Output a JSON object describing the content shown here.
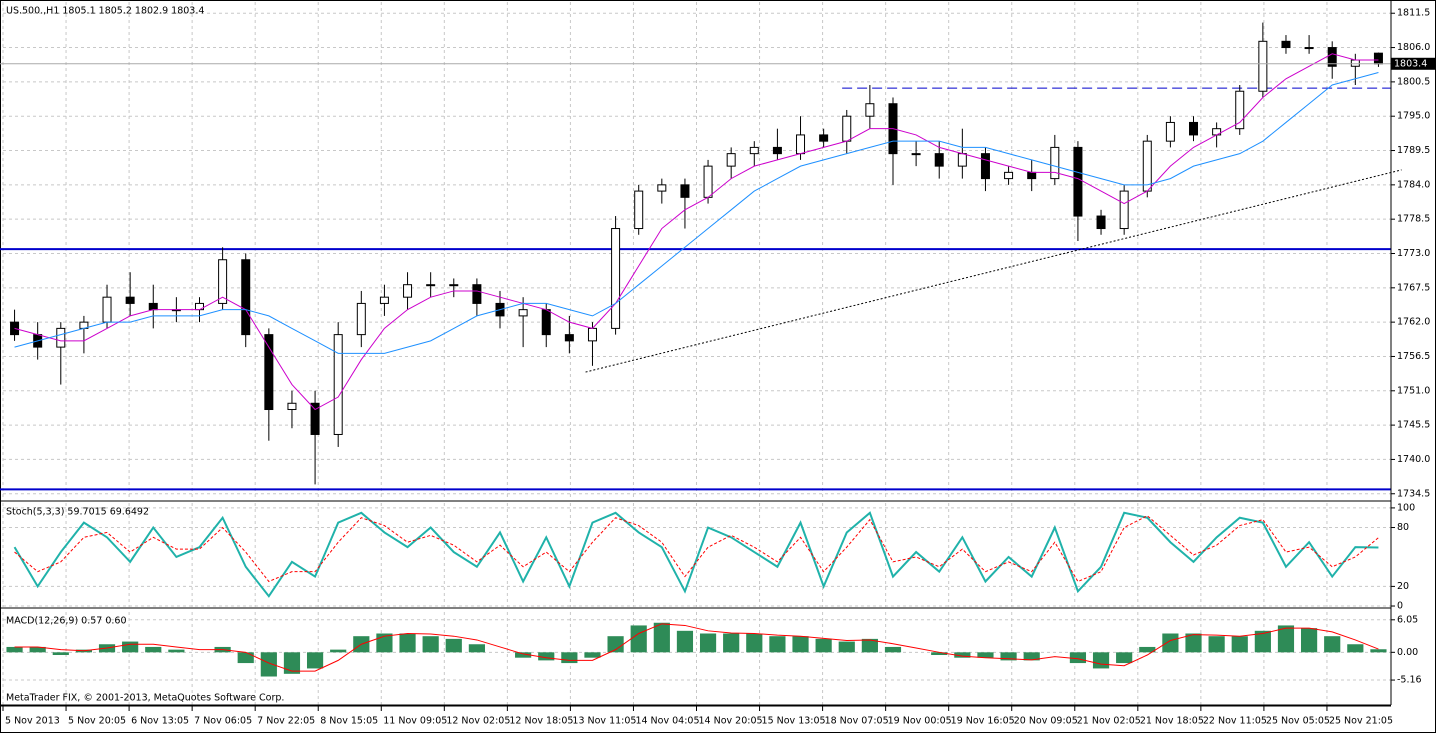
{
  "chart_data": [
    {
      "type": "candlestick",
      "title": "US.500.,H1  1805.1 1805.2 1802.9 1803.4",
      "up_color": "#ffffff",
      "down_color": "#000000",
      "grid": true,
      "ylim": [
        1733.5,
        1813.3
      ],
      "yticks": [
        1811.5,
        {
          "value": 1806,
          "label": "1806.0"
        },
        1800.5,
        {
          "value": 1795,
          "label": "1795.0"
        },
        1789.5,
        {
          "value": 1784,
          "label": "1784.0"
        },
        1778.5,
        {
          "value": 1773,
          "label": "1773.0"
        },
        1767.5,
        {
          "value": 1762,
          "label": "1762.0"
        },
        1756.5,
        {
          "value": 1751,
          "label": "1751.0"
        },
        1745.5,
        {
          "value": 1740,
          "label": "1740.0"
        },
        1734.5
      ],
      "ohlc": {
        "open": [
          1762,
          1760,
          1758,
          1761,
          1762,
          1766,
          1765,
          1764,
          1764,
          1765,
          1772,
          1760,
          1748,
          1749,
          1744,
          1760,
          1765,
          1766,
          1768,
          1768,
          1768,
          1765,
          1763,
          1764,
          1760,
          1759,
          1761,
          1777,
          1783,
          1784,
          1782,
          1787,
          1789,
          1790,
          1789,
          1792,
          1791,
          1795,
          1797,
          1789,
          1789,
          1787,
          1789,
          1785,
          1786,
          1785,
          1790,
          1779,
          1777,
          1783,
          1791,
          1794,
          1792,
          1793,
          1799,
          1807,
          1806,
          1806,
          1803,
          1805.1
        ],
        "high": [
          1764,
          1762,
          1762,
          1763,
          1768,
          1770,
          1768,
          1766,
          1766,
          1774,
          1773,
          1761,
          1751,
          1751,
          1762,
          1767,
          1768,
          1770,
          1770,
          1769,
          1769,
          1767,
          1766,
          1765,
          1763,
          1762,
          1779,
          1784,
          1785,
          1785,
          1788,
          1790,
          1791,
          1793,
          1795,
          1793,
          1796,
          1800,
          1798,
          1791,
          1791,
          1793,
          1790,
          1787,
          1788,
          1792,
          1791,
          1780,
          1784,
          1792,
          1795,
          1795,
          1794,
          1800,
          1810,
          1808,
          1808,
          1807,
          1805,
          1805.2
        ],
        "low": [
          1759,
          1756,
          1752,
          1757,
          1761,
          1763,
          1761,
          1762,
          1762,
          1764,
          1758,
          1743,
          1745,
          1736,
          1742,
          1758,
          1763,
          1764,
          1766,
          1766,
          1763,
          1761,
          1758,
          1758,
          1757,
          1755,
          1760,
          1776,
          1781,
          1777,
          1781,
          1785,
          1787,
          1788,
          1788,
          1790,
          1789,
          1793,
          1784,
          1787,
          1785,
          1785,
          1783,
          1784,
          1783,
          1784,
          1775,
          1776,
          1776,
          1782,
          1790,
          1791,
          1790,
          1792,
          1798,
          1805,
          1805,
          1801,
          1800,
          1802.9
        ],
        "close": [
          1760,
          1758,
          1761,
          1762,
          1766,
          1765,
          1764,
          1764,
          1765,
          1772,
          1760,
          1748,
          1749,
          1744,
          1760,
          1765,
          1766,
          1768,
          1768,
          1768,
          1765,
          1763,
          1764,
          1760,
          1759,
          1761,
          1777,
          1783,
          1784,
          1782,
          1787,
          1789,
          1790,
          1789,
          1792,
          1791,
          1795,
          1797,
          1789,
          1789,
          1787,
          1789,
          1785,
          1786,
          1785,
          1790,
          1779,
          1777,
          1783,
          1791,
          1794,
          1792,
          1793,
          1799,
          1807,
          1806,
          1806,
          1803,
          1804,
          1803.4
        ]
      },
      "series": [
        {
          "color": "#cc00cc",
          "values": [
            1761,
            1760,
            1759,
            1759,
            1761,
            1763,
            1764,
            1764,
            1764,
            1766,
            1764,
            1758,
            1752,
            1748,
            1750,
            1756,
            1761,
            1764,
            1766,
            1767,
            1767,
            1766,
            1765,
            1764,
            1762,
            1761,
            1765,
            1771,
            1777,
            1780,
            1782,
            1785,
            1787,
            1788,
            1789,
            1790,
            1791,
            1793,
            1793,
            1792,
            1790,
            1789,
            1788,
            1787,
            1786,
            1786,
            1785,
            1783,
            1781,
            1783,
            1787,
            1790,
            1792,
            1794,
            1798,
            1801,
            1803,
            1805,
            1804,
            1804
          ]
        },
        {
          "color": "#1e90ff",
          "values": [
            1758,
            1759,
            1760,
            1761,
            1762,
            1762,
            1763,
            1763,
            1763,
            1764,
            1764,
            1763,
            1761,
            1759,
            1757,
            1757,
            1757,
            1758,
            1759,
            1761,
            1763,
            1764,
            1765,
            1765,
            1764,
            1763,
            1765,
            1768,
            1771,
            1774,
            1777,
            1780,
            1783,
            1785,
            1787,
            1788,
            1789,
            1790,
            1791,
            1791,
            1791,
            1790,
            1790,
            1789,
            1788,
            1787,
            1786,
            1785,
            1784,
            1784,
            1785,
            1787,
            1788,
            1789,
            1791,
            1794,
            1797,
            1800,
            1801,
            1802
          ]
        }
      ],
      "levels": [
        {
          "value": 1773.7,
          "color": "#0000cc"
        },
        {
          "value": 1735.2,
          "color": "#0000cc"
        }
      ],
      "dashed_level": {
        "value": 1799.5,
        "from": 35.8,
        "color": "#0000cc"
      },
      "trendline": {
        "x": [
          24.7,
          60
        ],
        "y": [
          1754,
          1786.4
        ]
      }
    },
    {
      "type": "line",
      "title": "Stoch(5,3,3) 59.7015 69.6492",
      "ylim": [
        -1,
        105
      ],
      "yticks": [
        100,
        80,
        20,
        0
      ],
      "grid": true,
      "series": [
        {
          "color": "#20b2aa",
          "values": [
            60,
            20,
            55,
            85,
            70,
            45,
            80,
            50,
            60,
            90,
            40,
            10,
            45,
            30,
            85,
            95,
            75,
            60,
            80,
            55,
            40,
            75,
            25,
            70,
            20,
            85,
            95,
            75,
            60,
            15,
            80,
            70,
            55,
            40,
            85,
            20,
            75,
            95,
            30,
            55,
            35,
            70,
            25,
            50,
            30,
            80,
            15,
            40,
            95,
            90,
            65,
            45,
            70,
            90,
            85,
            40,
            65,
            30,
            60,
            59.7015
          ]
        },
        {
          "color": "#ff0000",
          "dashed": true,
          "values": [
            55,
            35,
            45,
            70,
            75,
            55,
            70,
            58,
            58,
            80,
            55,
            25,
            35,
            35,
            65,
            90,
            82,
            65,
            72,
            62,
            45,
            62,
            40,
            55,
            35,
            65,
            90,
            82,
            65,
            30,
            60,
            72,
            60,
            45,
            70,
            35,
            60,
            88,
            45,
            50,
            40,
            58,
            35,
            45,
            35,
            65,
            25,
            35,
            80,
            92,
            72,
            52,
            62,
            82,
            88,
            55,
            60,
            40,
            50,
            69.6492
          ]
        }
      ]
    },
    {
      "type": "macd",
      "title": "MACD(12,26,9) 0.57 0.60",
      "copyright": "MetaTrader FIX, © 2001-2013, MetaQuotes Software Corp.",
      "ylim": [
        -9.8,
        7.5
      ],
      "yticks": [
        6.05,
        {
          "value": 0,
          "label": "0.00"
        },
        -5.16
      ],
      "grid": true,
      "series": [
        {
          "color": "#2e8b57",
          "values": [
            1,
            1,
            -0.5,
            0.5,
            1.5,
            2,
            1,
            0.5,
            0,
            1,
            -2,
            -4.5,
            -4,
            -3,
            0.5,
            3,
            3.5,
            3.5,
            3,
            2.5,
            1.5,
            0,
            -1,
            -1.5,
            -2,
            -1,
            3,
            5,
            5.5,
            4,
            3.5,
            3.5,
            3.5,
            3,
            3,
            2.5,
            2,
            2.5,
            1,
            0,
            -0.5,
            -1,
            -1,
            -1.5,
            -1.5,
            0,
            -2,
            -3,
            -2,
            1,
            3.5,
            3.5,
            3,
            3,
            4,
            5,
            4.5,
            3,
            1.5,
            0.57
          ]
        },
        {
          "color": "#ff0000",
          "values": [
            1,
            1,
            0.5,
            0.3,
            0.8,
            1.5,
            1.5,
            1,
            0.5,
            0.5,
            0,
            -2,
            -3.5,
            -3.5,
            -1.5,
            1.5,
            3,
            3.5,
            3.4,
            3,
            2.3,
            1,
            -0.3,
            -1,
            -1.5,
            -1.5,
            0.5,
            3.5,
            5.3,
            5,
            4,
            3.6,
            3.5,
            3.2,
            3,
            2.6,
            2.2,
            2.3,
            1.6,
            0.8,
            0,
            -0.7,
            -1,
            -1.2,
            -1.4,
            -0.8,
            -1.2,
            -2.2,
            -2.5,
            -0.5,
            2.2,
            3.3,
            3.2,
            3,
            3.5,
            4.5,
            4.5,
            3.8,
            2.3,
            0.6
          ]
        }
      ]
    }
  ],
  "time_axis": [
    "5 Nov 2013",
    "5 Nov 20:05",
    "6 Nov 13:05",
    "7 Nov 06:05",
    "7 Nov 22:05",
    "8 Nov 15:05",
    "11 Nov 09:05",
    "12 Nov 02:05",
    "12 Nov 18:05",
    "13 Nov 11:05",
    "14 Nov 04:05",
    "14 Nov 20:05",
    "15 Nov 13:05",
    "18 Nov 07:05",
    "19 Nov 00:05",
    "19 Nov 16:05",
    "20 Nov 09:05",
    "21 Nov 02:05",
    "21 Nov 18:05",
    "22 Nov 11:05",
    "25 Nov 05:05",
    "25 Nov 21:05"
  ]
}
